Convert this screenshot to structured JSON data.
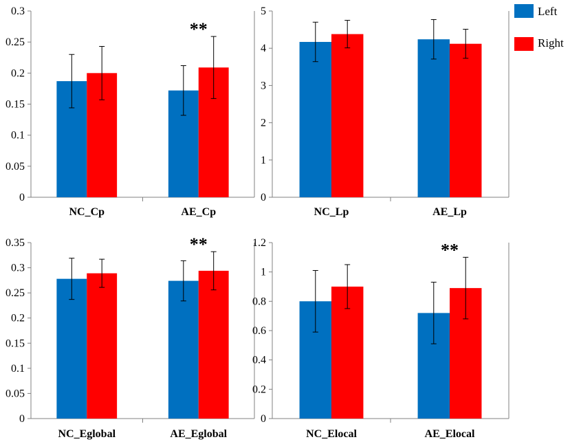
{
  "legend": {
    "left_label": "Left",
    "right_label": "Right",
    "left_color": "#0070c0",
    "right_color": "#ff0000"
  },
  "significance_marker": "**",
  "chart_data": [
    {
      "type": "bar",
      "categories": [
        "NC_Cp",
        "AE_Cp"
      ],
      "series": [
        {
          "name": "Left",
          "values": [
            0.187,
            0.172
          ],
          "errors": [
            0.043,
            0.04
          ]
        },
        {
          "name": "Right",
          "values": [
            0.2,
            0.209
          ],
          "errors": [
            0.043,
            0.05
          ]
        }
      ],
      "ylim": [
        0,
        0.3
      ],
      "yticks": [
        0,
        0.05,
        0.1,
        0.15,
        0.2,
        0.25,
        0.3
      ],
      "ytick_labels": [
        "0",
        "0.05",
        "0.1",
        "0.15",
        "0.2",
        "0.25",
        "0.3"
      ],
      "significant": [
        false,
        true
      ]
    },
    {
      "type": "bar",
      "categories": [
        "NC_Lp",
        "AE_Lp"
      ],
      "series": [
        {
          "name": "Left",
          "values": [
            4.17,
            4.24
          ],
          "errors": [
            0.53,
            0.53
          ]
        },
        {
          "name": "Right",
          "values": [
            4.38,
            4.12
          ],
          "errors": [
            0.37,
            0.39
          ]
        }
      ],
      "ylim": [
        0,
        5
      ],
      "yticks": [
        0,
        1,
        2,
        3,
        4,
        5
      ],
      "ytick_labels": [
        "0",
        "1",
        "2",
        "3",
        "4",
        "5"
      ],
      "significant": [
        false,
        false
      ]
    },
    {
      "type": "bar",
      "categories": [
        "NC_Eglobal",
        "AE_Eglobal"
      ],
      "series": [
        {
          "name": "Left",
          "values": [
            0.278,
            0.274
          ],
          "errors": [
            0.041,
            0.04
          ]
        },
        {
          "name": "Right",
          "values": [
            0.289,
            0.294
          ],
          "errors": [
            0.028,
            0.038
          ]
        }
      ],
      "ylim": [
        0,
        0.35
      ],
      "yticks": [
        0,
        0.05,
        0.1,
        0.15,
        0.2,
        0.25,
        0.3,
        0.35
      ],
      "ytick_labels": [
        "0",
        "0.05",
        "0.1",
        "0.15",
        "0.2",
        "0.25",
        "0.3",
        "0.35"
      ],
      "significant": [
        false,
        true
      ]
    },
    {
      "type": "bar",
      "categories": [
        "NC_Elocal",
        "AE_Elocal"
      ],
      "series": [
        {
          "name": "Left",
          "values": [
            0.8,
            0.72
          ],
          "errors": [
            0.21,
            0.21
          ]
        },
        {
          "name": "Right",
          "values": [
            0.9,
            0.89
          ],
          "errors": [
            0.15,
            0.21
          ]
        }
      ],
      "ylim": [
        0,
        1.2
      ],
      "yticks": [
        0,
        0.2,
        0.4,
        0.6,
        0.8,
        1.0,
        1.2
      ],
      "ytick_labels": [
        "0",
        "0.2",
        "0.4",
        "0.6",
        "0.8",
        "1",
        "1.2"
      ],
      "significant": [
        false,
        true
      ]
    }
  ]
}
